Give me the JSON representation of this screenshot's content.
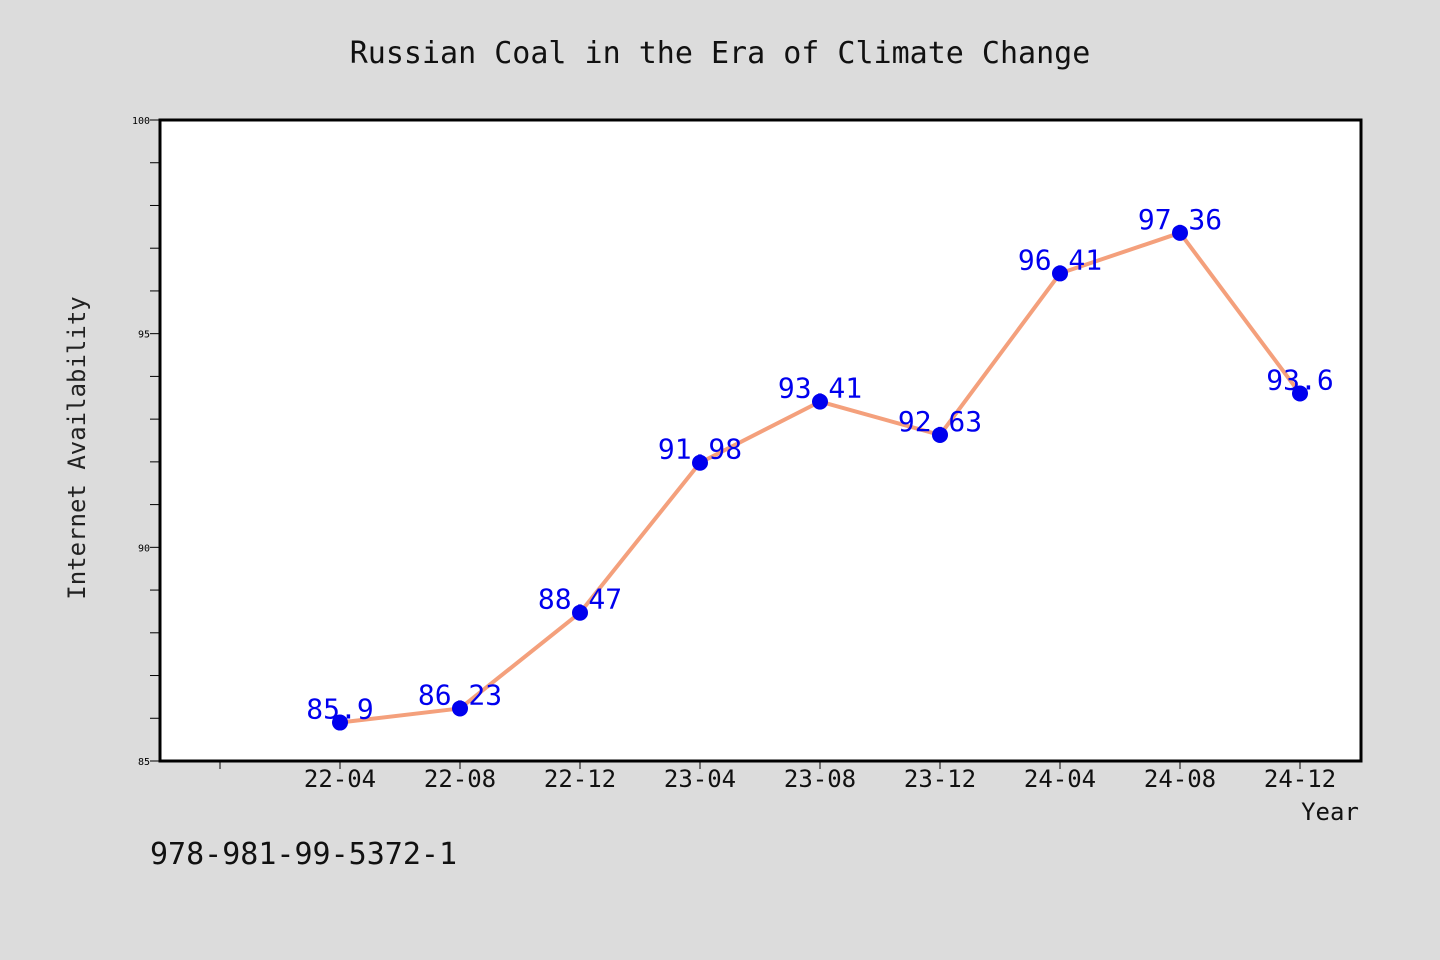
{
  "chart_data": {
    "type": "line",
    "title": "Russian Coal in the Era of Climate Change",
    "xlabel": "Year",
    "ylabel": "Internet Availability",
    "categories": [
      "22-04",
      "22-08",
      "22-12",
      "23-04",
      "23-08",
      "23-12",
      "24-04",
      "24-08",
      "24-12"
    ],
    "series": [
      {
        "values": [
          85.9,
          86.23,
          88.47,
          91.98,
          93.41,
          92.63,
          96.41,
          97.36,
          93.6
        ],
        "labels": [
          "85.9",
          "86.23",
          "88.47",
          "91.98",
          "93.41",
          "92.63",
          "96.41",
          "97.36",
          "93.6"
        ]
      }
    ],
    "ylim": [
      85,
      100
    ],
    "yticks": [
      85,
      90,
      95,
      100
    ],
    "grid": false,
    "legend": "none",
    "line_color": "#f4a07c",
    "marker_color": "#0000ee",
    "label_color": "#0000ee"
  },
  "footer_text": "978-981-99-5372-1"
}
